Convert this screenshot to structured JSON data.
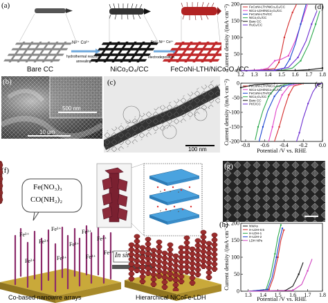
{
  "panels": {
    "a": {
      "label": "(a)",
      "captions": [
        "Bare CC",
        "NiCo₂O₄/CC",
        "FeCoNi-LTH/NiCo₂O₄/CC"
      ],
      "step1_ions": "Ni²⁺ Co²⁺",
      "step1_lines": [
        "hydrothermal reaction",
        "annealing"
      ],
      "step2_ions": "Fe²⁺ Ni²⁺ Co²⁺",
      "step2_line": "electrodeposition"
    },
    "b": {
      "label": "(b)",
      "scale1": "500 nm",
      "scale2": "10 μm"
    },
    "c": {
      "label": "(c)",
      "scale": "100 nm"
    },
    "f": {
      "label": "(f)",
      "precursor_lines": [
        "Fe(NO₃)₃",
        "CO(NH₂)₂"
      ],
      "fe_ion": "Fe³⁺",
      "arrow_text": "In situ growth",
      "left_caption": "Co-based nanowire arrays",
      "right_caption": "Hierarchical NiCoFe-LDH"
    },
    "g": {
      "label": "(g)"
    },
    "h": {
      "label": "(h)"
    }
  },
  "chart_data": [
    {
      "panel": "d",
      "type": "line",
      "title": "",
      "xlabel": "Potential /V vs. RHE",
      "ylabel": "Current density /(mA·cm⁻²)",
      "xlim": [
        1.2,
        1.8
      ],
      "ylim": [
        0,
        200
      ],
      "xticks": [
        1.2,
        1.3,
        1.4,
        1.5,
        1.6,
        1.7,
        1.8
      ],
      "yticks": [
        0,
        50,
        100,
        150,
        200
      ],
      "legend_position": "top-left",
      "series": [
        {
          "name": "FeCoNi-LTH/NiCo₂O₄/CC",
          "color": "#d42a2a",
          "x": [
            1.2,
            1.35,
            1.45,
            1.48,
            1.5,
            1.52,
            1.55,
            1.58,
            1.61
          ],
          "y": [
            0,
            2,
            6,
            25,
            60,
            100,
            140,
            175,
            200
          ]
        },
        {
          "name": "NiCo-LDH/NiCo₂O₄/CC",
          "color": "#e040c8",
          "x": [
            1.2,
            1.35,
            1.4,
            1.45,
            1.5,
            1.55,
            1.6,
            1.65,
            1.69
          ],
          "y": [
            0,
            3,
            8,
            30,
            35,
            45,
            90,
            150,
            200
          ]
        },
        {
          "name": "FeCoNi-LTH/CC",
          "color": "#1a44d0",
          "x": [
            1.2,
            1.45,
            1.52,
            1.56,
            1.6,
            1.64,
            1.68
          ],
          "y": [
            0,
            2,
            8,
            35,
            80,
            140,
            200
          ]
        },
        {
          "name": "NiCo₂O₄/CC",
          "color": "#2aa84a",
          "x": [
            1.2,
            1.5,
            1.58,
            1.64,
            1.7,
            1.75,
            1.78
          ],
          "y": [
            0,
            1,
            8,
            30,
            80,
            140,
            180
          ]
        },
        {
          "name": "Bare CC",
          "color": "#111111",
          "x": [
            1.2,
            1.6,
            1.7,
            1.8
          ],
          "y": [
            0,
            1,
            3,
            8
          ]
        },
        {
          "name": "RuO₂/CC",
          "color": "#6a2ad0",
          "x": [
            1.2,
            1.45,
            1.55,
            1.62,
            1.68,
            1.72,
            1.76
          ],
          "y": [
            0,
            1,
            10,
            40,
            90,
            140,
            180
          ]
        }
      ]
    },
    {
      "panel": "e",
      "type": "line",
      "title": "",
      "xlabel": "Potential /V vs. RHE",
      "ylabel": "Current density /(mA·cm⁻²)",
      "xlim": [
        -0.85,
        0.0
      ],
      "ylim": [
        -200,
        0
      ],
      "xticks": [
        -0.8,
        -0.6,
        -0.4,
        -0.2,
        0.0
      ],
      "yticks": [
        -200,
        -150,
        -100,
        -50,
        0
      ],
      "legend_position": "top-left",
      "series": [
        {
          "name": "FeCoNi-LTH/NiCo₂O₄/CC",
          "color": "#d42a2a",
          "x": [
            0,
            -0.2,
            -0.3,
            -0.35,
            -0.4,
            -0.45,
            -0.5
          ],
          "y": [
            0,
            -1,
            -10,
            -40,
            -90,
            -150,
            -200
          ]
        },
        {
          "name": "NiCo-LDH/NiCo₂O₄/CC",
          "color": "#e040c8",
          "x": [
            0,
            -0.25,
            -0.35,
            -0.42,
            -0.48,
            -0.52,
            -0.56
          ],
          "y": [
            0,
            -1,
            -10,
            -40,
            -90,
            -150,
            -200
          ]
        },
        {
          "name": "FeCoNi-LTH/CC",
          "color": "#1a44d0",
          "x": [
            0,
            -0.3,
            -0.42,
            -0.5,
            -0.57,
            -0.62,
            -0.66
          ],
          "y": [
            0,
            -1,
            -12,
            -45,
            -95,
            -150,
            -200
          ]
        },
        {
          "name": "NiCo₂O₄/CC",
          "color": "#2aa84a",
          "x": [
            0,
            -0.35,
            -0.48,
            -0.56,
            -0.62,
            -0.67,
            -0.7
          ],
          "y": [
            0,
            -1,
            -12,
            -45,
            -95,
            -150,
            -195
          ]
        },
        {
          "name": "Bare CC",
          "color": "#111111",
          "x": [
            0,
            -0.5,
            -0.7,
            -0.85
          ],
          "y": [
            0,
            -1,
            -5,
            -15
          ]
        },
        {
          "name": "Pt/C/CC",
          "color": "#6a2ad0",
          "x": [
            0,
            -0.05,
            -0.1,
            -0.15,
            -0.2,
            -0.24,
            -0.27
          ],
          "y": [
            0,
            -5,
            -30,
            -70,
            -120,
            -170,
            -200
          ]
        }
      ]
    },
    {
      "panel": "h",
      "type": "line",
      "title": "",
      "xlabel": "Potential /V vs. RHE",
      "ylabel": "Current density /(mA·cm⁻²)",
      "xlim": [
        1.25,
        1.8
      ],
      "ylim": [
        0,
        200
      ],
      "xticks": [
        1.3,
        1.4,
        1.5,
        1.6,
        1.7,
        1.8
      ],
      "yticks": [
        0,
        50,
        100,
        150,
        200
      ],
      "legend_position": "top-left",
      "series": [
        {
          "name": "NWAs",
          "color": "#111111",
          "x": [
            1.3,
            1.55,
            1.6,
            1.64,
            1.67
          ],
          "y": [
            0,
            2,
            15,
            50,
            85
          ]
        },
        {
          "name": "H-LDH-0.5",
          "color": "#d42a2a",
          "x": [
            1.3,
            1.44,
            1.47,
            1.5,
            1.52,
            1.54
          ],
          "y": [
            0,
            5,
            40,
            100,
            150,
            180
          ]
        },
        {
          "name": "H-LDH-1",
          "color": "#2aa84a",
          "x": [
            1.3,
            1.42,
            1.45,
            1.48,
            1.5,
            1.52
          ],
          "y": [
            0,
            5,
            45,
            110,
            160,
            195
          ]
        },
        {
          "name": "H-LDH-2",
          "color": "#1a44d0",
          "x": [
            1.3,
            1.43,
            1.46,
            1.49,
            1.51,
            1.53
          ],
          "y": [
            0,
            5,
            40,
            100,
            150,
            185
          ]
        },
        {
          "name": "LDH NPs",
          "color": "#d040c0",
          "x": [
            1.3,
            1.6,
            1.66,
            1.7,
            1.73
          ],
          "y": [
            0,
            2,
            20,
            60,
            95
          ]
        }
      ]
    }
  ]
}
